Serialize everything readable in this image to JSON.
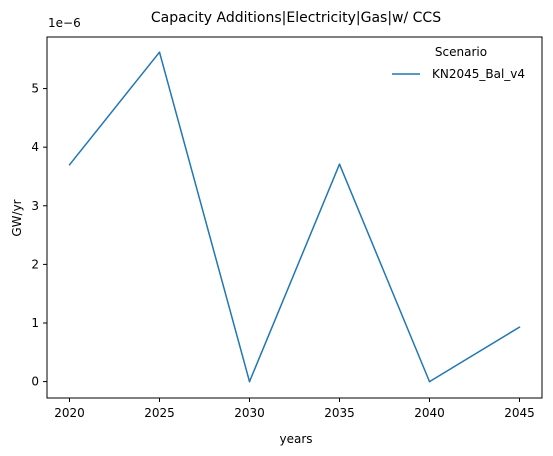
{
  "chart_data": {
    "type": "line",
    "title": "Capacity Additions|Electricity|Gas|w/ CCS",
    "xlabel": "years",
    "ylabel": "GW/yr",
    "y_scale_label": "1e−6",
    "x": [
      2020,
      2025,
      2030,
      2035,
      2040,
      2045
    ],
    "x_ticks": [
      "2020",
      "2025",
      "2030",
      "2035",
      "2040",
      "2045"
    ],
    "y_ticks": [
      0,
      1,
      2,
      3,
      4,
      5
    ],
    "y_tick_labels": [
      "0",
      "1",
      "2",
      "3",
      "4",
      "5"
    ],
    "xlim": [
      2018.75,
      2046.25
    ],
    "ylim": [
      -0.28,
      5.88
    ],
    "grid": false,
    "legend": {
      "title": "Scenario",
      "placement": "top-right"
    },
    "series": [
      {
        "name": "KN2045_Bal_v4",
        "color": "#1f77b4",
        "values": [
          3.7,
          5.62,
          0.0,
          3.71,
          0.0,
          0.93
        ]
      }
    ]
  }
}
